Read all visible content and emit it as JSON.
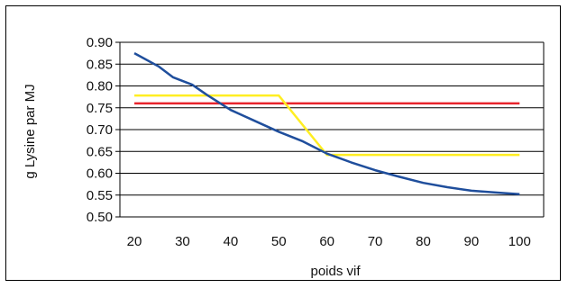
{
  "chart_data": {
    "type": "line",
    "title": "",
    "xlabel": "poids vif",
    "ylabel": "g Lysine par MJ",
    "xlim": [
      17,
      105
    ],
    "ylim": [
      0.5,
      0.9
    ],
    "x_ticks": [
      20,
      30,
      40,
      50,
      60,
      70,
      80,
      90,
      100
    ],
    "y_ticks": [
      0.5,
      0.55,
      0.6,
      0.65,
      0.7,
      0.75,
      0.8,
      0.85,
      0.9
    ],
    "y_tick_labels": [
      "0.50",
      "0.55",
      "0.60",
      "0.65",
      "0.70",
      "0.75",
      "0.80",
      "0.85",
      "0.90"
    ],
    "grid": "horizontal",
    "legend": "none",
    "series": [
      {
        "color": "#1f4e9c",
        "points": [
          [
            20,
            0.875
          ],
          [
            25,
            0.845
          ],
          [
            28,
            0.82
          ],
          [
            32,
            0.803
          ],
          [
            35,
            0.78
          ],
          [
            40,
            0.745
          ],
          [
            45,
            0.72
          ],
          [
            50,
            0.695
          ],
          [
            55,
            0.673
          ],
          [
            60,
            0.645
          ],
          [
            65,
            0.625
          ],
          [
            70,
            0.607
          ],
          [
            75,
            0.592
          ],
          [
            80,
            0.578
          ],
          [
            85,
            0.568
          ],
          [
            90,
            0.56
          ],
          [
            95,
            0.556
          ],
          [
            100,
            0.552
          ]
        ]
      },
      {
        "color": "#ffee22",
        "points": [
          [
            20,
            0.778
          ],
          [
            50,
            0.778
          ],
          [
            60,
            0.642
          ],
          [
            100,
            0.642
          ]
        ]
      },
      {
        "color": "#e8242c",
        "points": [
          [
            20,
            0.76
          ],
          [
            100,
            0.76
          ]
        ]
      }
    ]
  }
}
